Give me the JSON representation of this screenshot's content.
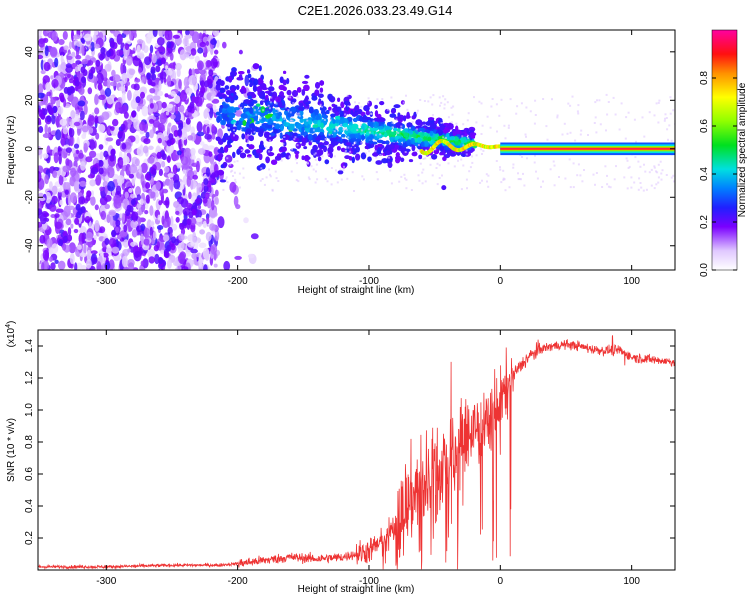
{
  "title": "C2E1.2026.033.23.49.G14",
  "chart_data": [
    {
      "type": "heatmap",
      "name": "spectrogram",
      "xlabel": "Height of straight line (km)",
      "ylabel": "Frequency (Hz)",
      "xlim": [
        -352,
        133
      ],
      "ylim": [
        -50,
        49
      ],
      "xticks": [
        -300,
        -200,
        -100,
        0,
        100
      ],
      "xtick_labels": [
        "-300",
        "-200",
        "-100",
        "0",
        "100"
      ],
      "yticks": [
        -40,
        -20,
        0,
        20,
        40
      ],
      "ytick_labels": [
        "-40",
        "-20",
        "0",
        "20",
        "40"
      ],
      "colorbar": {
        "label": "Normalized spectral amplitude",
        "range": [
          0,
          1
        ],
        "ticks": [
          0.0,
          0.2,
          0.4,
          0.6,
          0.8
        ],
        "tick_labels": [
          "0.0",
          "0.2",
          "0.4",
          "0.6",
          "0.8"
        ]
      },
      "features": [
        {
          "x_range": [
            -352,
            -215
          ],
          "freq_range": [
            -50,
            49
          ],
          "amplitude": 0.1,
          "description": "scattered noise"
        },
        {
          "x_range": [
            -215,
            -20
          ],
          "freq_center_start": 15,
          "freq_center_end": 2,
          "amplitude": 0.3,
          "description": "converging signal"
        },
        {
          "x_range": [
            0,
            133
          ],
          "freq_center": 0,
          "amplitude": 0.95,
          "description": "strong carrier line"
        }
      ]
    },
    {
      "type": "line",
      "name": "snr",
      "xlabel": "Height of straight line (km)",
      "ylabel": "SNR (10 * v/v)",
      "y_multiplier": "(x10^4)",
      "multiplier_base": "(x10",
      "multiplier_exp": "4",
      "multiplier_close": ")",
      "color": "#ee3333",
      "xlim": [
        -352,
        133
      ],
      "ylim": [
        0,
        1.5
      ],
      "xticks": [
        -300,
        -200,
        -100,
        0,
        100
      ],
      "xtick_labels": [
        "-300",
        "-200",
        "-100",
        "0",
        "100"
      ],
      "yticks": [
        0.2,
        0.4,
        0.6,
        0.8,
        1.0,
        1.2,
        1.4
      ],
      "ytick_labels": [
        "0.2",
        "0.4",
        "0.6",
        "0.8",
        "1.0",
        "1.2",
        "1.4"
      ],
      "x": [
        -352,
        -300,
        -250,
        -215,
        -200,
        -180,
        -160,
        -140,
        -120,
        -100,
        -90,
        -80,
        -70,
        -60,
        -50,
        -40,
        -30,
        -20,
        -10,
        0,
        10,
        20,
        30,
        40,
        50,
        60,
        70,
        80,
        90,
        100,
        110,
        120,
        133
      ],
      "y": [
        0.02,
        0.02,
        0.03,
        0.03,
        0.04,
        0.06,
        0.08,
        0.07,
        0.08,
        0.12,
        0.18,
        0.28,
        0.42,
        0.55,
        0.6,
        0.68,
        0.78,
        0.88,
        0.95,
        1.05,
        1.22,
        1.32,
        1.38,
        1.4,
        1.41,
        1.4,
        1.38,
        1.37,
        1.38,
        1.33,
        1.32,
        1.31,
        1.3
      ]
    }
  ]
}
